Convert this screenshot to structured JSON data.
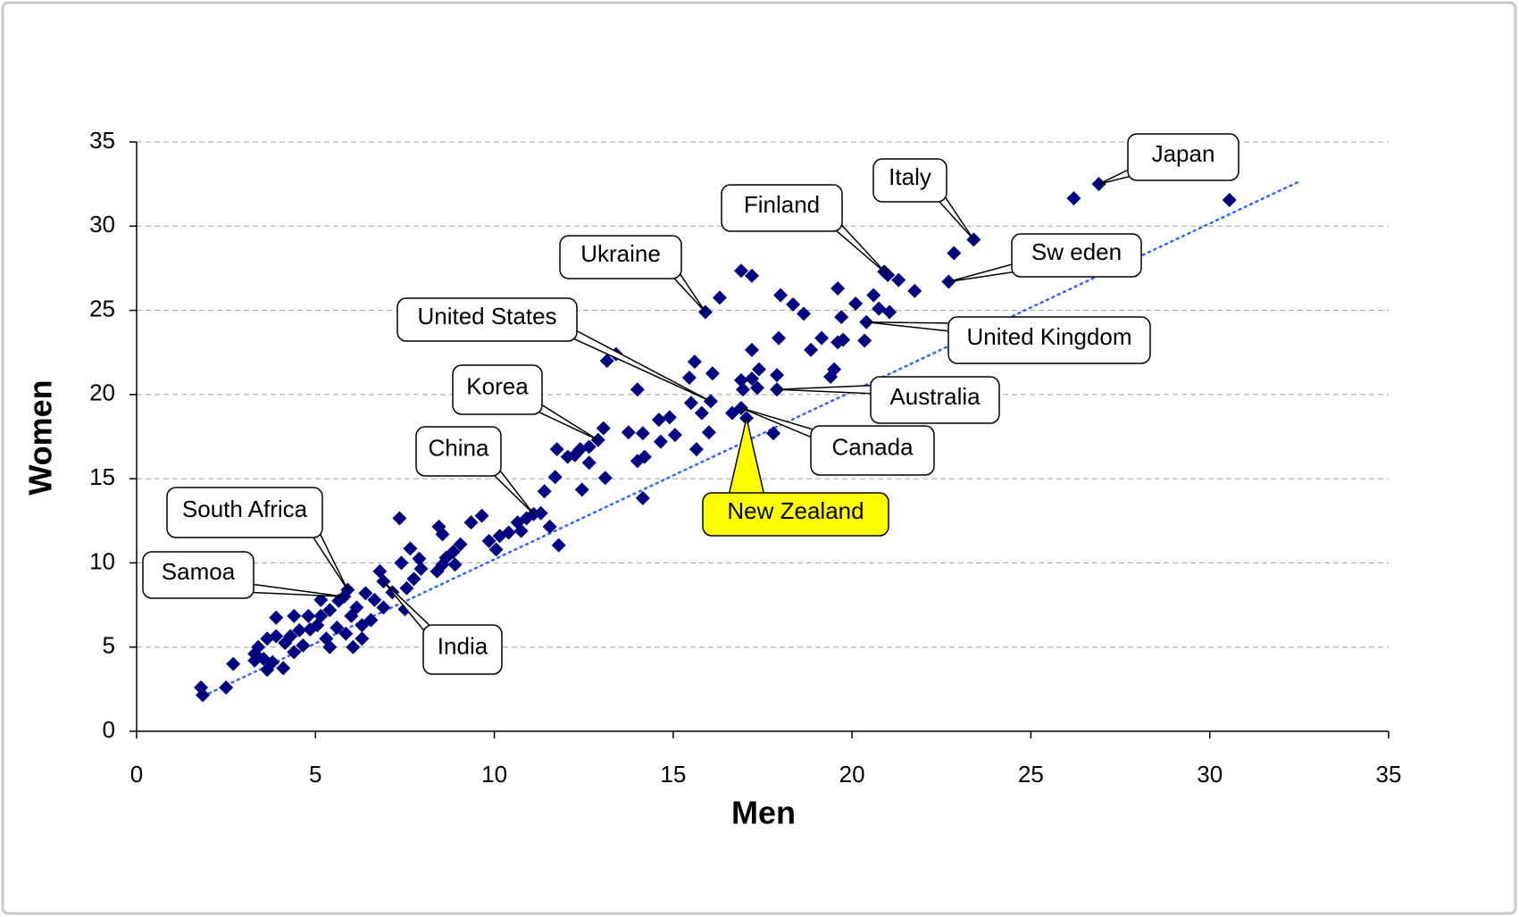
{
  "chart_data": {
    "type": "scatter",
    "xlabel": "Men",
    "ylabel": "Women",
    "xlim": [
      0,
      35
    ],
    "ylim": [
      0,
      35
    ],
    "xticks": [
      0,
      5,
      10,
      15,
      20,
      25,
      30,
      35
    ],
    "yticks": [
      0,
      5,
      10,
      15,
      20,
      25,
      30,
      35
    ],
    "grid": true,
    "color": "#000080",
    "trendline": {
      "x": [
        1.87,
        32.5
      ],
      "y": [
        2.1,
        32.65
      ],
      "color": "#3366ff"
    },
    "x": [
      30.55,
      26.2,
      22.85,
      21.75,
      21.3,
      20.9,
      19.6,
      16.9,
      17.2,
      16.3,
      18.0,
      18.35,
      18.65,
      19.7,
      20.1,
      20.6,
      20.75,
      21.05,
      19.15,
      18.85,
      19.6,
      19.75,
      20.35,
      19.5,
      19.4,
      17.95,
      17.2,
      15.6,
      16.1,
      17.9,
      17.4,
      17.2,
      16.9,
      17.35,
      16.95,
      15.45,
      15.5,
      15.8,
      16.65,
      16.0,
      15.65,
      17.8,
      14.0,
      13.15,
      13.4,
      13.75,
      14.15,
      14.6,
      14.9,
      14.65,
      15.05,
      14.0,
      14.2,
      14.15,
      13.05,
      12.65,
      12.4,
      12.25,
      12.05,
      11.75,
      11.7,
      12.65,
      12.45,
      13.1,
      11.4,
      11.8,
      11.3,
      11.55,
      10.9,
      10.65,
      10.75,
      10.4,
      10.15,
      9.85,
      10.05,
      9.65,
      9.35,
      9.05,
      8.85,
      8.65,
      8.9,
      8.55,
      8.4,
      8.45,
      8.55,
      7.9,
      7.95,
      7.65,
      7.4,
      7.35,
      7.75,
      7.55,
      7.15,
      6.8,
      6.4,
      6.65,
      6.9,
      7.5,
      6.15,
      6.0,
      6.3,
      6.55,
      5.65,
      5.4,
      5.15,
      5.05,
      4.8,
      4.85,
      4.55,
      4.4,
      4.3,
      4.15,
      3.9,
      3.65,
      3.9,
      3.4,
      3.55,
      3.8,
      4.1,
      3.65,
      3.3,
      3.3,
      2.7,
      2.5,
      1.8,
      1.85,
      4.4,
      4.65,
      5.3,
      5.4,
      6.05,
      6.3,
      5.6,
      5.85,
      5.15
    ],
    "y": [
      31.55,
      31.65,
      28.4,
      26.15,
      26.8,
      27.3,
      26.3,
      27.35,
      27.05,
      25.75,
      25.9,
      25.35,
      24.8,
      24.6,
      25.4,
      25.9,
      25.1,
      24.9,
      23.35,
      22.65,
      23.1,
      23.25,
      23.2,
      21.5,
      21.05,
      23.35,
      22.65,
      21.95,
      21.25,
      21.15,
      21.5,
      20.95,
      20.85,
      20.4,
      20.3,
      21.0,
      19.5,
      18.9,
      18.9,
      17.75,
      16.75,
      17.7,
      20.3,
      22.0,
      22.4,
      17.75,
      17.7,
      18.5,
      18.65,
      17.2,
      17.6,
      16.05,
      16.3,
      13.85,
      18.0,
      16.9,
      16.75,
      16.4,
      16.3,
      16.75,
      15.1,
      15.95,
      14.35,
      15.05,
      14.25,
      11.05,
      12.95,
      12.15,
      12.65,
      12.4,
      11.9,
      11.8,
      11.6,
      11.3,
      10.8,
      12.8,
      12.4,
      11.1,
      10.65,
      10.3,
      9.9,
      9.9,
      9.5,
      12.15,
      11.7,
      10.25,
      9.65,
      10.85,
      10.0,
      12.65,
      9.05,
      8.5,
      8.25,
      9.5,
      8.2,
      7.8,
      7.35,
      7.25,
      7.35,
      6.85,
      6.3,
      6.6,
      7.75,
      7.2,
      6.85,
      6.3,
      6.85,
      6.05,
      6.0,
      6.85,
      5.65,
      5.25,
      5.65,
      5.5,
      6.75,
      5.0,
      4.3,
      4.1,
      3.75,
      3.65,
      4.2,
      4.6,
      4.0,
      2.6,
      2.6,
      2.15,
      4.7,
      5.1,
      5.5,
      5.0,
      5.0,
      5.5,
      6.15,
      5.8,
      7.8
    ],
    "annotations": [
      {
        "text": "Japan",
        "x": 26.9,
        "y": 32.5,
        "color": "#ffffff"
      },
      {
        "text": "Italy",
        "x": 23.4,
        "y": 29.2,
        "color": "#ffffff"
      },
      {
        "text": "Finland",
        "x": 21.0,
        "y": 27.1,
        "color": "#ffffff"
      },
      {
        "text": "Sw eden",
        "x": 22.7,
        "y": 26.7,
        "color": "#ffffff"
      },
      {
        "text": "Ukraine",
        "x": 15.9,
        "y": 24.9,
        "color": "#ffffff"
      },
      {
        "text": "United Kingdom",
        "x": 20.4,
        "y": 24.3,
        "color": "#ffffff"
      },
      {
        "text": "United States",
        "x": 16.05,
        "y": 19.6,
        "color": "#ffffff"
      },
      {
        "text": "Australia",
        "x": 17.9,
        "y": 20.3,
        "color": "#ffffff"
      },
      {
        "text": "Canada",
        "x": 16.9,
        "y": 19.2,
        "color": "#ffffff"
      },
      {
        "text": "New Zealand",
        "x": 17.05,
        "y": 18.6,
        "color": "#ffff00"
      },
      {
        "text": "Korea",
        "x": 12.9,
        "y": 17.3,
        "color": "#ffffff"
      },
      {
        "text": "China",
        "x": 11.1,
        "y": 12.9,
        "color": "#ffffff"
      },
      {
        "text": "South Africa",
        "x": 5.9,
        "y": 8.4,
        "color": "#ffffff"
      },
      {
        "text": "Samoa",
        "x": 5.8,
        "y": 8.0,
        "color": "#ffffff"
      },
      {
        "text": "India",
        "x": 6.9,
        "y": 8.9,
        "color": "#ffffff"
      }
    ]
  }
}
